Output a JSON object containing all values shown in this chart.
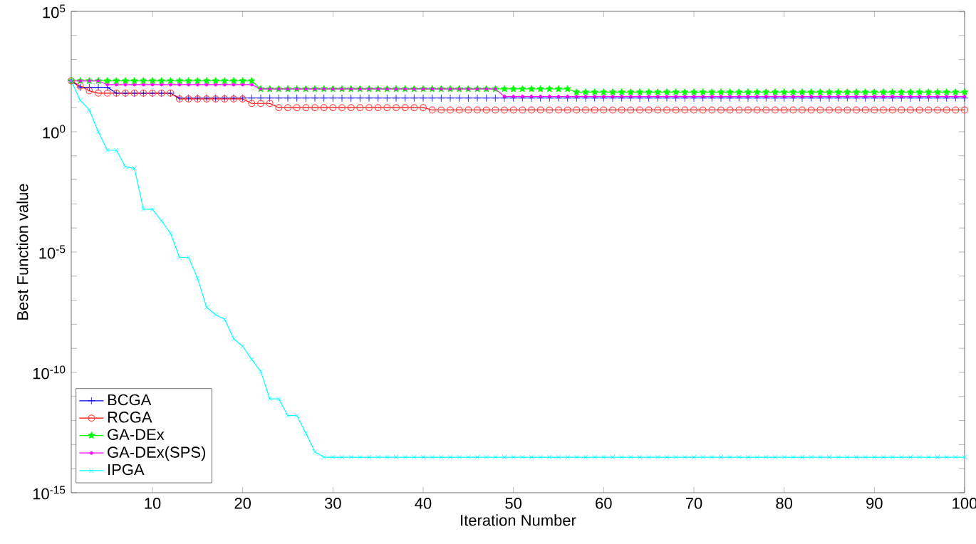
{
  "chart_data": {
    "type": "line",
    "xlabel": "Iteration Number",
    "ylabel": "Best Function value",
    "log": "y",
    "legend": "bottom left",
    "grid": false,
    "line_style": "solid",
    "x": [
      1,
      2,
      3,
      4,
      5,
      6,
      7,
      8,
      9,
      10,
      11,
      12,
      13,
      14,
      15,
      16,
      17,
      18,
      19,
      20,
      21,
      22,
      23,
      24,
      25,
      26,
      27,
      28,
      29,
      30,
      31,
      32,
      33,
      34,
      35,
      36,
      37,
      38,
      39,
      40,
      41,
      42,
      43,
      44,
      45,
      46,
      47,
      48,
      49,
      50,
      51,
      52,
      53,
      54,
      55,
      56,
      57,
      58,
      59,
      60,
      61,
      62,
      63,
      64,
      65,
      66,
      67,
      68,
      69,
      70,
      71,
      72,
      73,
      74,
      75,
      76,
      77,
      78,
      79,
      80,
      81,
      82,
      83,
      84,
      85,
      86,
      87,
      88,
      89,
      90,
      91,
      92,
      93,
      94,
      95,
      96,
      97,
      98,
      99,
      100
    ],
    "xlim": [
      1,
      100
    ],
    "xticks": [
      10,
      20,
      30,
      40,
      50,
      60,
      70,
      80,
      90,
      100
    ],
    "ylim": [
      1e-15,
      100000.0
    ],
    "yticks": [
      {
        "value": 1e-15,
        "label": "10$^{-15}$"
      },
      {
        "value": 1e-14,
        "label": null
      },
      {
        "value": 1e-13,
        "label": null
      },
      {
        "value": 1e-12,
        "label": null
      },
      {
        "value": 1e-11,
        "label": null
      },
      {
        "value": 1e-10,
        "label": "10$^{-10}$"
      },
      {
        "value": 1e-09,
        "label": null
      },
      {
        "value": 1e-08,
        "label": null
      },
      {
        "value": 1e-07,
        "label": null
      },
      {
        "value": 1e-06,
        "label": null
      },
      {
        "value": 1e-05,
        "label": "10$^{-5}$"
      },
      {
        "value": 0.0001,
        "label": null
      },
      {
        "value": 0.001,
        "label": null
      },
      {
        "value": 0.01,
        "label": null
      },
      {
        "value": 0.1,
        "label": null
      },
      {
        "value": 1,
        "label": "10$^{0}$"
      },
      {
        "value": 10,
        "label": null
      },
      {
        "value": 100,
        "label": null
      },
      {
        "value": 1000,
        "label": null
      },
      {
        "value": 10000,
        "label": null
      },
      {
        "value": 100000.0,
        "label": "10$^{5}$"
      }
    ],
    "series": [
      {
        "name": "BCGA",
        "color": "#0000ff",
        "marker": "plus",
        "values": [
          130,
          70,
          70,
          70,
          70,
          40,
          40,
          40,
          40,
          40,
          40,
          40,
          25,
          25,
          25,
          25,
          25,
          25,
          25,
          25,
          25,
          25,
          25,
          25,
          25,
          25,
          25,
          25,
          25,
          25,
          25,
          25,
          25,
          25,
          25,
          25,
          25,
          25,
          25,
          25,
          25,
          25,
          25,
          25,
          25,
          25,
          25,
          25,
          25,
          25,
          25,
          25,
          25,
          25,
          25,
          25,
          25,
          25,
          25,
          25,
          25,
          25,
          25,
          25,
          25,
          25,
          25,
          25,
          25,
          25,
          25,
          25,
          25,
          25,
          25,
          25,
          25,
          25,
          25,
          25,
          25,
          25,
          25,
          25,
          25,
          25,
          25,
          25,
          25,
          25,
          25,
          25,
          25,
          25,
          25,
          25,
          25,
          25,
          25,
          25
        ]
      },
      {
        "name": "RCGA",
        "color": "#ff0000",
        "marker": "circle",
        "values": [
          130,
          80,
          50,
          40,
          40,
          40,
          40,
          40,
          40,
          40,
          40,
          40,
          23,
          23,
          23,
          23,
          23,
          23,
          23,
          23,
          15,
          15,
          15,
          10,
          10,
          10,
          10,
          10,
          10,
          10,
          10,
          10,
          10,
          10,
          10,
          10,
          10,
          10,
          10,
          10,
          8,
          8,
          8,
          8,
          8,
          8,
          8,
          8,
          8,
          8,
          8,
          8,
          8,
          8,
          8,
          8,
          8,
          8,
          8,
          8,
          8,
          8,
          8,
          8,
          8,
          8,
          8,
          8,
          8,
          8,
          8,
          8,
          8,
          8,
          8,
          8,
          8,
          8,
          8,
          8,
          8,
          8,
          8,
          8,
          8,
          8,
          8,
          8,
          8,
          8,
          8,
          8,
          8,
          8,
          8,
          8,
          8,
          8,
          8,
          8
        ]
      },
      {
        "name": "GA-DEx",
        "color": "#00ff00",
        "marker": "star",
        "values": [
          130,
          130,
          130,
          130,
          130,
          130,
          130,
          130,
          130,
          130,
          130,
          130,
          130,
          130,
          130,
          130,
          130,
          130,
          130,
          130,
          130,
          60,
          60,
          60,
          60,
          60,
          60,
          60,
          60,
          60,
          60,
          60,
          60,
          60,
          60,
          60,
          60,
          60,
          60,
          60,
          60,
          60,
          60,
          60,
          60,
          60,
          60,
          60,
          60,
          60,
          60,
          60,
          60,
          60,
          60,
          60,
          44,
          44,
          44,
          44,
          44,
          44,
          44,
          44,
          44,
          44,
          44,
          44,
          44,
          44,
          44,
          44,
          44,
          44,
          44,
          44,
          44,
          44,
          44,
          44,
          44,
          44,
          44,
          44,
          44,
          44,
          44,
          44,
          44,
          44,
          44,
          44,
          44,
          44,
          44,
          44,
          44,
          44,
          44,
          44
        ]
      },
      {
        "name": "GA-DEx(SPS)",
        "color": "#ff00ff",
        "marker": "dot",
        "values": [
          130,
          130,
          130,
          130,
          90,
          90,
          90,
          90,
          90,
          90,
          90,
          90,
          90,
          90,
          90,
          90,
          90,
          90,
          90,
          90,
          90,
          60,
          60,
          60,
          60,
          60,
          60,
          60,
          60,
          60,
          60,
          60,
          60,
          60,
          60,
          60,
          60,
          60,
          60,
          60,
          60,
          60,
          60,
          60,
          60,
          60,
          60,
          60,
          29,
          29,
          29,
          29,
          29,
          29,
          29,
          29,
          29,
          29,
          29,
          29,
          29,
          29,
          29,
          29,
          29,
          29,
          29,
          29,
          29,
          29,
          29,
          29,
          29,
          29,
          29,
          29,
          29,
          29,
          29,
          29,
          29,
          29,
          29,
          29,
          29,
          29,
          29,
          29,
          29,
          29,
          29,
          29,
          29,
          29,
          29,
          29,
          29,
          29,
          29,
          29
        ]
      },
      {
        "name": "IPGA",
        "color": "#00ffff",
        "marker": "cross",
        "values": [
          130,
          20,
          8,
          1,
          0.17,
          0.17,
          0.035,
          0.03,
          0.0006,
          0.0006,
          0.0002,
          6e-05,
          6e-06,
          6e-06,
          8e-07,
          5e-08,
          2.5e-08,
          1.6e-08,
          2.5e-09,
          1.2e-09,
          3.5e-10,
          1.1e-10,
          8e-12,
          8e-12,
          1.6e-12,
          1.6e-12,
          3e-13,
          5e-14,
          3e-14,
          3e-14,
          3e-14,
          3e-14,
          3e-14,
          3e-14,
          3e-14,
          3e-14,
          3e-14,
          3e-14,
          3e-14,
          3e-14,
          3e-14,
          3e-14,
          3e-14,
          3e-14,
          3e-14,
          3e-14,
          3e-14,
          3e-14,
          3e-14,
          3e-14,
          3e-14,
          3e-14,
          3e-14,
          3e-14,
          3e-14,
          3e-14,
          3e-14,
          3e-14,
          3e-14,
          3e-14,
          3e-14,
          3e-14,
          3e-14,
          3e-14,
          3e-14,
          3e-14,
          3e-14,
          3e-14,
          3e-14,
          3e-14,
          3e-14,
          3e-14,
          3e-14,
          3e-14,
          3e-14,
          3e-14,
          3e-14,
          3e-14,
          3e-14,
          3e-14,
          3e-14,
          3e-14,
          3e-14,
          3e-14,
          3e-14,
          3e-14,
          3e-14,
          3e-14,
          3e-14,
          3e-14,
          3e-14,
          3e-14,
          3e-14,
          3e-14,
          3e-14,
          3e-14,
          3e-14,
          3e-14,
          3e-14,
          3e-14
        ]
      }
    ]
  }
}
